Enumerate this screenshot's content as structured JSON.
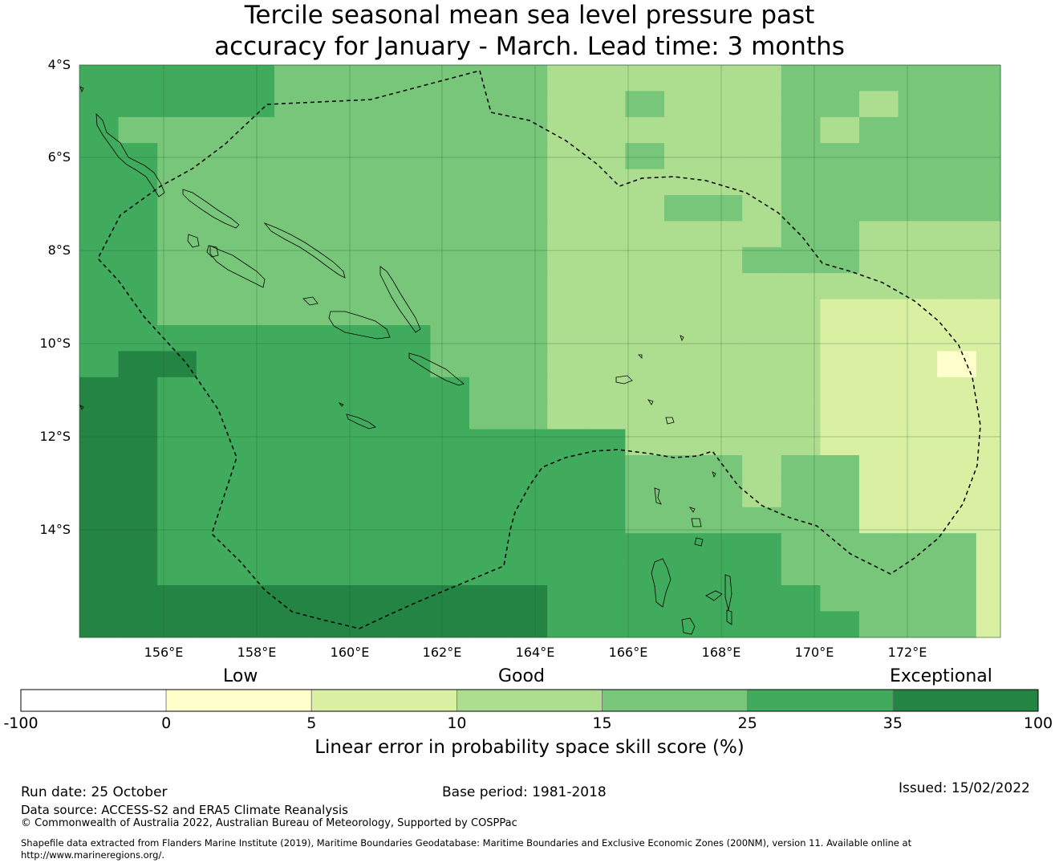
{
  "title": {
    "line1": "Tercile seasonal mean sea level pressure past",
    "line2": "accuracy for January - March. Lead time: 3 months"
  },
  "map": {
    "lat_labels": [
      "4°S",
      "6°S",
      "8°S",
      "10°S",
      "12°S",
      "14°S"
    ],
    "lon_labels": [
      "156°E",
      "158°E",
      "160°E",
      "162°E",
      "164°E",
      "166°E",
      "168°E",
      "170°E",
      "172°E"
    ],
    "grid_color": "#1e5a30",
    "coast_color": "#000000",
    "eez_style": "dashed"
  },
  "legend": {
    "categories": [
      "Low",
      "Good",
      "Exceptional"
    ],
    "bins": [
      {
        "min": "-100",
        "max": "0",
        "color": "#ffffff"
      },
      {
        "min": "0",
        "max": "5",
        "color": "#ffffcc"
      },
      {
        "min": "5",
        "max": "10",
        "color": "#d9f0a3"
      },
      {
        "min": "10",
        "max": "15",
        "color": "#addd8e"
      },
      {
        "min": "15",
        "max": "25",
        "color": "#78c679"
      },
      {
        "min": "25",
        "max": "35",
        "color": "#41ab5d"
      },
      {
        "min": "35",
        "max": "100",
        "color": "#238443"
      }
    ],
    "tick_labels": [
      "-100",
      "0",
      "5",
      "10",
      "15",
      "25",
      "35",
      "100"
    ],
    "axis_label": "Linear error in probability space skill score (%)"
  },
  "footer": {
    "run_date": "Run date: 25 October",
    "base_period": "Base period: 1981-2018",
    "issued": "Issued: 15/02/2022",
    "data_source": "Data source: ACCESS-S2 and ERA5 Climate Reanalysis",
    "copyright": "© Commonwealth of Australia 2022, Australian Bureau of Meteorology, Supported by COSPPac",
    "shapefile_line1": "Shapefile data extracted from Flanders Marine Institute (2019), Maritime Boundaries Geodatabase: Maritime Boundaries and Exclusive Economic Zones (200NM), version 11. Available online at",
    "shapefile_line2": "http://www.marineregions.org/."
  }
}
